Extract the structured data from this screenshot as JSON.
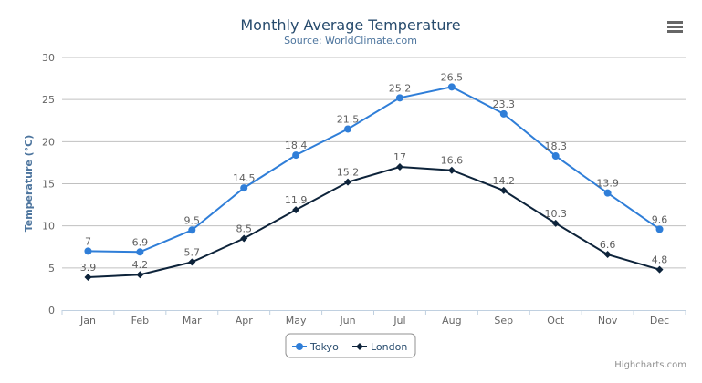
{
  "menu_icon": "hamburger-menu-icon",
  "credits": "Highcharts.com",
  "chart_data": {
    "type": "line",
    "title": "Monthly Average Temperature",
    "subtitle": "Source: WorldClimate.com",
    "xlabel": "",
    "ylabel": "Temperature (°C)",
    "ylim": [
      0,
      30
    ],
    "yticks": [
      0,
      5,
      10,
      15,
      20,
      25,
      30
    ],
    "grid": true,
    "legend_placement": "bottom",
    "categories": [
      "Jan",
      "Feb",
      "Mar",
      "Apr",
      "May",
      "Jun",
      "Jul",
      "Aug",
      "Sep",
      "Oct",
      "Nov",
      "Dec"
    ],
    "series": [
      {
        "name": "Tokyo",
        "color": "#2f7ed8",
        "marker": "circle",
        "values": [
          7.0,
          6.9,
          9.5,
          14.5,
          18.4,
          21.5,
          25.2,
          26.5,
          23.3,
          18.3,
          13.9,
          9.6
        ]
      },
      {
        "name": "London",
        "color": "#0d233a",
        "marker": "diamond",
        "values": [
          3.9,
          4.2,
          5.7,
          8.5,
          11.9,
          15.2,
          17.0,
          16.6,
          14.2,
          10.3,
          6.6,
          4.8
        ]
      }
    ]
  }
}
